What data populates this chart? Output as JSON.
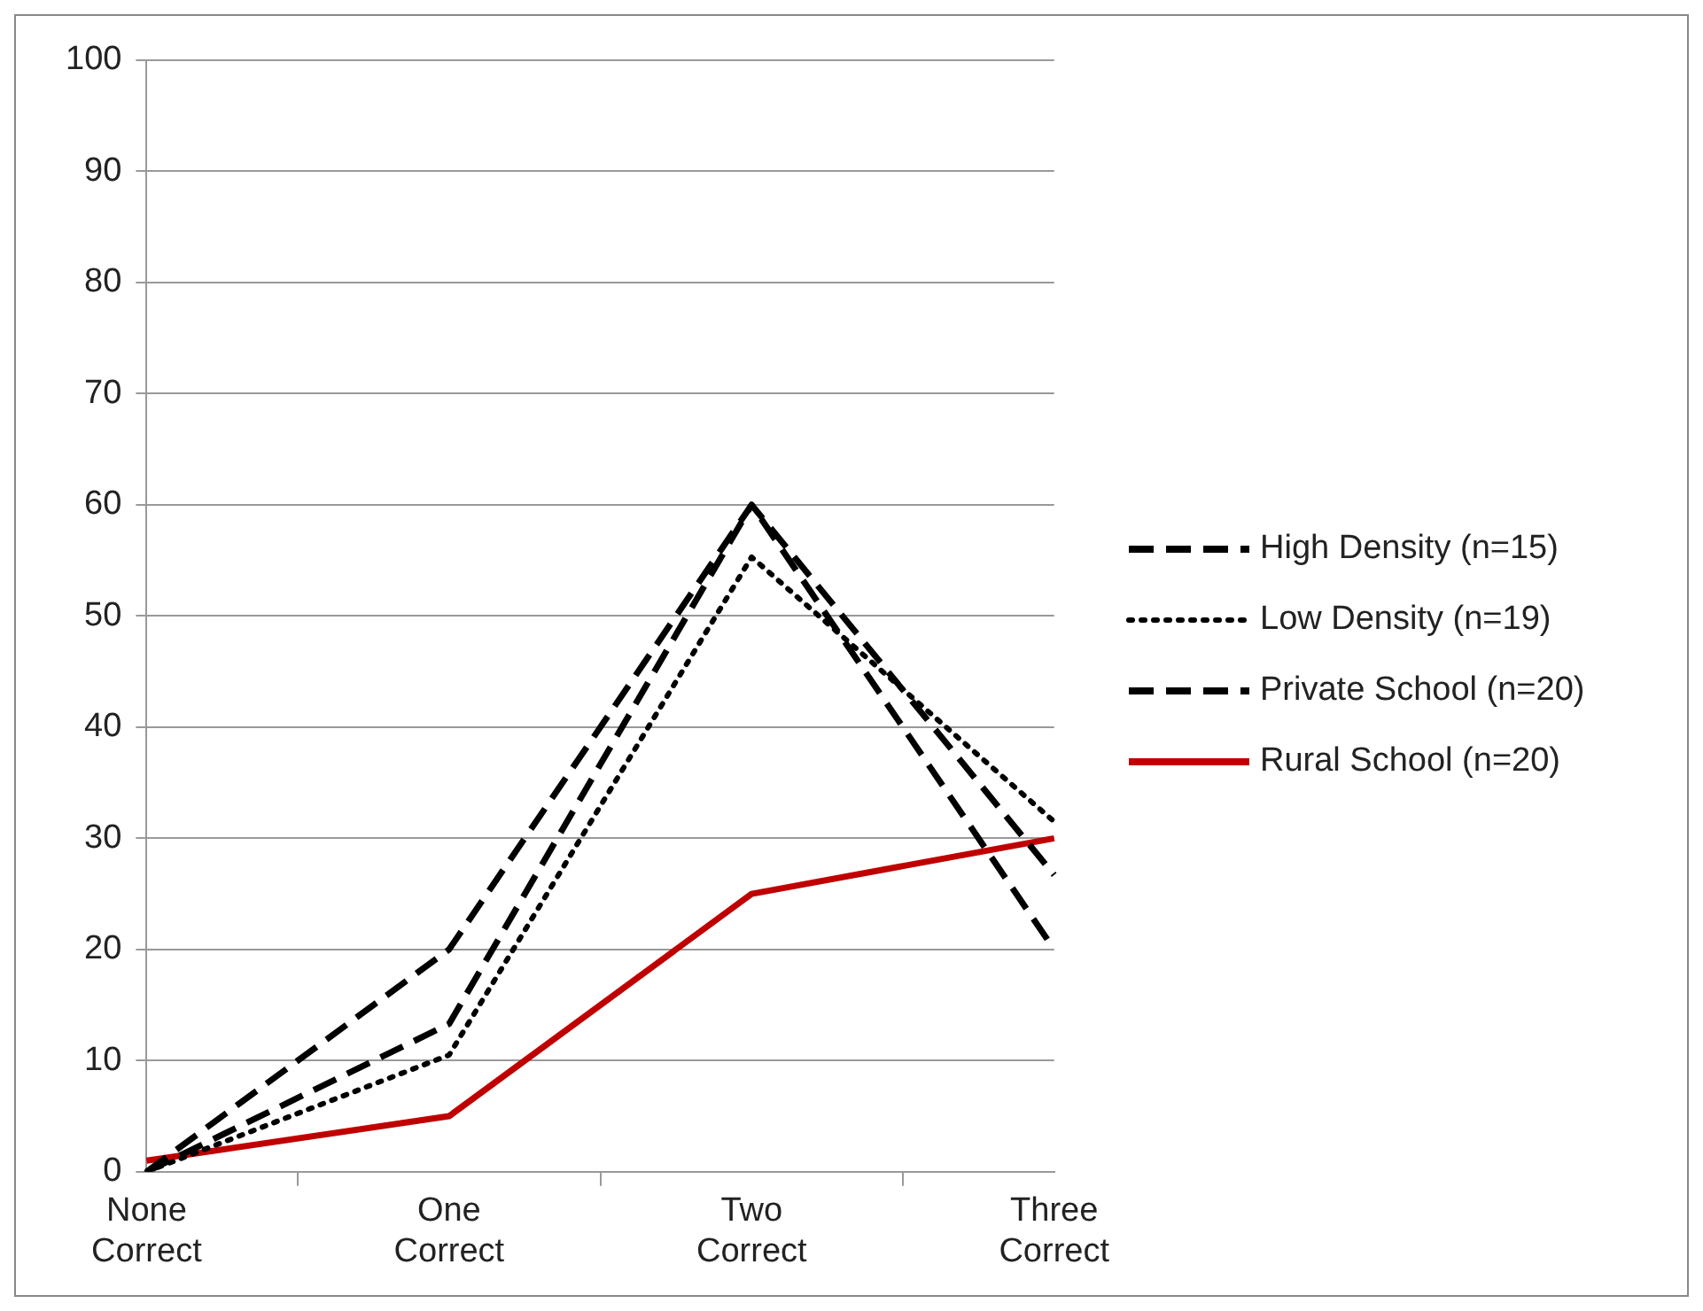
{
  "chart_data": {
    "type": "line",
    "categories": [
      "None Correct",
      "One Correct",
      "Two Correct",
      "Three Correct"
    ],
    "series": [
      {
        "name": "High Density (n=15)",
        "color": "#000000",
        "line_style": "dashed",
        "values": [
          0,
          13.3,
          60,
          26.7
        ]
      },
      {
        "name": "Low Density (n=19)",
        "color": "#000000",
        "line_style": "dotted",
        "values": [
          0,
          10.5,
          55.3,
          31.5
        ]
      },
      {
        "name": "Private School (n=20)",
        "color": "#000000",
        "line_style": "dashed",
        "values": [
          0,
          20,
          60,
          20
        ]
      },
      {
        "name": "Rural School (n=20)",
        "color": "#c00000",
        "line_style": "solid",
        "values": [
          1,
          5,
          25,
          30
        ]
      }
    ],
    "ylim": [
      0,
      100
    ],
    "yticks": [
      0,
      10,
      20,
      30,
      40,
      50,
      60,
      70,
      80,
      90,
      100
    ],
    "grid": "y",
    "legend": "right",
    "marker": "none"
  }
}
